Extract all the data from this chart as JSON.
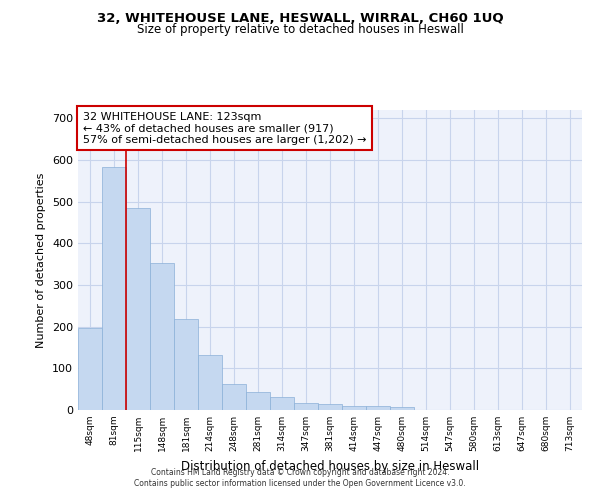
{
  "title1": "32, WHITEHOUSE LANE, HESWALL, WIRRAL, CH60 1UQ",
  "title2": "Size of property relative to detached houses in Heswall",
  "xlabel": "Distribution of detached houses by size in Heswall",
  "ylabel": "Number of detached properties",
  "categories": [
    "48sqm",
    "81sqm",
    "115sqm",
    "148sqm",
    "181sqm",
    "214sqm",
    "248sqm",
    "281sqm",
    "314sqm",
    "347sqm",
    "381sqm",
    "414sqm",
    "447sqm",
    "480sqm",
    "514sqm",
    "547sqm",
    "580sqm",
    "613sqm",
    "647sqm",
    "680sqm",
    "713sqm"
  ],
  "values": [
    196,
    583,
    485,
    353,
    218,
    132,
    63,
    44,
    31,
    16,
    15,
    10,
    10,
    7,
    0,
    0,
    0,
    0,
    0,
    0,
    0
  ],
  "bar_color": "#c5d8f0",
  "bar_edge_color": "#8ab0d8",
  "marker_line_index": 2,
  "marker_line_color": "#cc0000",
  "annotation_line1": "32 WHITEHOUSE LANE: 123sqm",
  "annotation_line2": "← 43% of detached houses are smaller (917)",
  "annotation_line3": "57% of semi-detached houses are larger (1,202) →",
  "annotation_box_color": "#ffffff",
  "annotation_box_edge_color": "#cc0000",
  "ylim": [
    0,
    720
  ],
  "yticks": [
    0,
    100,
    200,
    300,
    400,
    500,
    600,
    700
  ],
  "footer1": "Contains HM Land Registry data © Crown copyright and database right 2024.",
  "footer2": "Contains public sector information licensed under the Open Government Licence v3.0.",
  "bg_color": "#eef2fb",
  "grid_color": "#c8d4ec"
}
